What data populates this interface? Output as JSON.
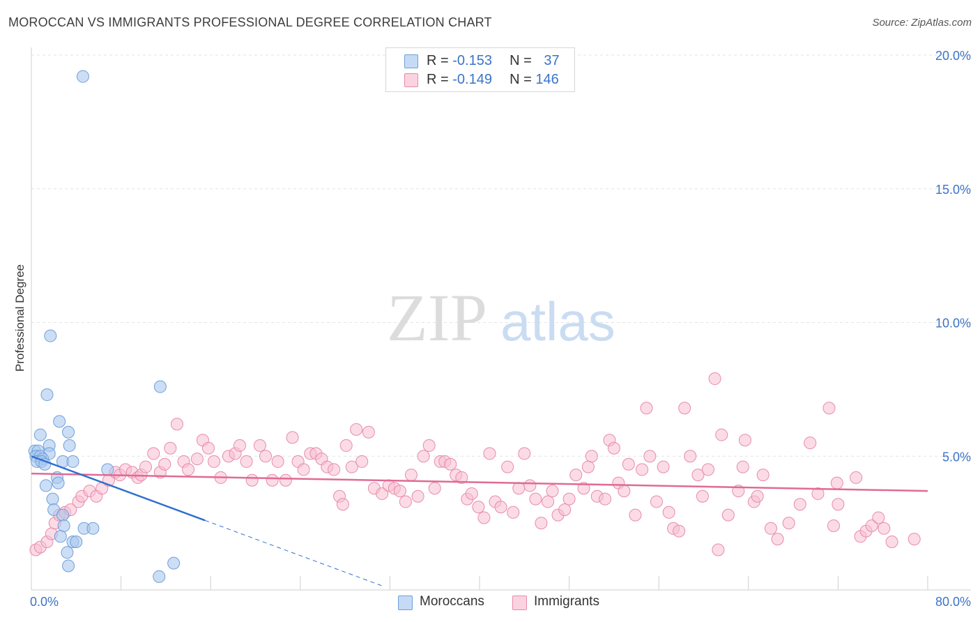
{
  "header": {
    "title": "MOROCCAN VS IMMIGRANTS PROFESSIONAL DEGREE CORRELATION CHART",
    "source": "Source: ZipAtlas.com"
  },
  "watermark": {
    "zip": "ZIP",
    "atlas": "atlas"
  },
  "legend": {
    "rows": [
      {
        "r_label": "R = ",
        "r_value": "-0.153",
        "n_label": "N = ",
        "n_value": "37"
      },
      {
        "r_label": "R = ",
        "r_value": "-0.149",
        "n_label": "N = ",
        "n_value": "146"
      }
    ]
  },
  "bottom_legend": {
    "moroccans": "Moroccans",
    "immigrants": "Immigrants"
  },
  "colors": {
    "moroccans_fill": "#aac8ee",
    "moroccans_stroke": "#6f9fd8",
    "moroccans_line": "#2f6fcf",
    "immigrants_fill": "#f7c0d2",
    "immigrants_stroke": "#e88aaa",
    "immigrants_line": "#e06a96",
    "tick_label": "#3b73c8",
    "grid": "#e3e3e3"
  },
  "chart_data": {
    "type": "scatter",
    "title": "MOROCCAN VS IMMIGRANTS PROFESSIONAL DEGREE CORRELATION CHART",
    "xlabel": "",
    "ylabel": "Professional Degree",
    "xlim": [
      0,
      80
    ],
    "ylim": [
      0,
      20
    ],
    "x_tick_labels": [
      "0.0%",
      "80.0%"
    ],
    "y_tick_labels": [
      "5.0%",
      "10.0%",
      "15.0%",
      "20.0%"
    ],
    "y_ticks": [
      5,
      10,
      15,
      20
    ],
    "grid": true,
    "legend_position": "top-center",
    "series": [
      {
        "name": "Moroccans",
        "r": -0.153,
        "n": 37,
        "trend": {
          "x1": 0,
          "y1": 5.0,
          "x2": 15.5,
          "y2": 2.6,
          "dashed_to_x": 31.5
        },
        "points": [
          [
            4.6,
            19.2
          ],
          [
            1.7,
            9.5
          ],
          [
            11.5,
            7.6
          ],
          [
            1.4,
            7.3
          ],
          [
            2.5,
            6.3
          ],
          [
            0.8,
            5.8
          ],
          [
            3.3,
            5.9
          ],
          [
            1.6,
            5.4
          ],
          [
            3.4,
            5.4
          ],
          [
            0.3,
            5.2
          ],
          [
            0.6,
            5.2
          ],
          [
            1.6,
            5.1
          ],
          [
            0.4,
            5.0
          ],
          [
            0.8,
            5.0
          ],
          [
            1.0,
            4.9
          ],
          [
            0.5,
            4.8
          ],
          [
            0.9,
            4.8
          ],
          [
            1.2,
            4.7
          ],
          [
            2.8,
            4.8
          ],
          [
            3.7,
            4.8
          ],
          [
            6.8,
            4.5
          ],
          [
            2.3,
            4.2
          ],
          [
            1.3,
            3.9
          ],
          [
            2.4,
            4.0
          ],
          [
            1.9,
            3.4
          ],
          [
            2.0,
            3.0
          ],
          [
            2.8,
            2.8
          ],
          [
            2.9,
            2.4
          ],
          [
            4.7,
            2.3
          ],
          [
            5.5,
            2.3
          ],
          [
            2.6,
            2.0
          ],
          [
            3.7,
            1.8
          ],
          [
            4.0,
            1.8
          ],
          [
            3.2,
            1.4
          ],
          [
            3.3,
            0.9
          ],
          [
            12.7,
            1.0
          ],
          [
            11.4,
            0.5
          ]
        ]
      },
      {
        "name": "Immigrants",
        "r": -0.149,
        "n": 146,
        "trend": {
          "x1": 0,
          "y1": 4.35,
          "x2": 80,
          "y2": 3.7
        },
        "points": [
          [
            0.4,
            1.5
          ],
          [
            0.8,
            1.6
          ],
          [
            1.4,
            1.8
          ],
          [
            1.8,
            2.1
          ],
          [
            2.1,
            2.5
          ],
          [
            2.5,
            2.8
          ],
          [
            3.0,
            2.9
          ],
          [
            3.5,
            3.0
          ],
          [
            4.2,
            3.3
          ],
          [
            4.5,
            3.5
          ],
          [
            5.2,
            3.7
          ],
          [
            5.8,
            3.5
          ],
          [
            6.3,
            3.8
          ],
          [
            6.9,
            4.1
          ],
          [
            7.5,
            4.4
          ],
          [
            7.9,
            4.3
          ],
          [
            8.4,
            4.5
          ],
          [
            9.0,
            4.4
          ],
          [
            9.5,
            4.2
          ],
          [
            9.8,
            4.3
          ],
          [
            10.2,
            4.6
          ],
          [
            10.9,
            5.1
          ],
          [
            11.5,
            4.4
          ],
          [
            11.9,
            4.7
          ],
          [
            12.4,
            5.3
          ],
          [
            13.0,
            6.2
          ],
          [
            13.6,
            4.8
          ],
          [
            14.0,
            4.5
          ],
          [
            14.8,
            4.9
          ],
          [
            15.3,
            5.6
          ],
          [
            15.8,
            5.3
          ],
          [
            16.3,
            4.8
          ],
          [
            16.9,
            4.2
          ],
          [
            17.6,
            5.0
          ],
          [
            18.2,
            5.1
          ],
          [
            18.6,
            5.4
          ],
          [
            19.2,
            4.8
          ],
          [
            19.7,
            4.1
          ],
          [
            20.4,
            5.4
          ],
          [
            20.9,
            5.0
          ],
          [
            21.5,
            4.1
          ],
          [
            22.0,
            4.8
          ],
          [
            22.7,
            4.1
          ],
          [
            23.3,
            5.7
          ],
          [
            23.8,
            4.8
          ],
          [
            24.3,
            4.5
          ],
          [
            24.9,
            5.1
          ],
          [
            25.4,
            5.1
          ],
          [
            25.9,
            4.9
          ],
          [
            26.4,
            4.6
          ],
          [
            27.0,
            4.5
          ],
          [
            27.5,
            3.5
          ],
          [
            27.8,
            3.2
          ],
          [
            28.1,
            5.4
          ],
          [
            28.6,
            4.6
          ],
          [
            29.0,
            6.0
          ],
          [
            29.5,
            4.8
          ],
          [
            30.1,
            5.9
          ],
          [
            30.6,
            3.8
          ],
          [
            31.3,
            3.6
          ],
          [
            31.9,
            3.9
          ],
          [
            32.4,
            3.8
          ],
          [
            32.9,
            3.7
          ],
          [
            33.4,
            3.3
          ],
          [
            33.9,
            4.3
          ],
          [
            34.5,
            3.5
          ],
          [
            35.0,
            5.0
          ],
          [
            35.5,
            5.4
          ],
          [
            36.0,
            3.8
          ],
          [
            36.5,
            4.8
          ],
          [
            36.9,
            4.8
          ],
          [
            37.4,
            4.7
          ],
          [
            37.9,
            4.3
          ],
          [
            38.4,
            4.2
          ],
          [
            38.9,
            3.4
          ],
          [
            39.3,
            3.6
          ],
          [
            39.9,
            3.1
          ],
          [
            40.4,
            2.7
          ],
          [
            40.9,
            5.1
          ],
          [
            41.4,
            3.3
          ],
          [
            41.9,
            3.1
          ],
          [
            42.5,
            4.6
          ],
          [
            43.0,
            2.9
          ],
          [
            43.5,
            3.8
          ],
          [
            44.0,
            5.1
          ],
          [
            44.5,
            3.9
          ],
          [
            45.0,
            3.4
          ],
          [
            45.5,
            2.5
          ],
          [
            46.1,
            3.3
          ],
          [
            46.5,
            3.7
          ],
          [
            47.0,
            2.8
          ],
          [
            47.6,
            3.0
          ],
          [
            48.0,
            3.4
          ],
          [
            48.6,
            4.3
          ],
          [
            49.3,
            3.8
          ],
          [
            49.7,
            4.6
          ],
          [
            50.0,
            5.0
          ],
          [
            50.5,
            3.5
          ],
          [
            51.2,
            3.4
          ],
          [
            51.6,
            5.6
          ],
          [
            52.0,
            5.3
          ],
          [
            52.4,
            4.0
          ],
          [
            52.9,
            3.7
          ],
          [
            53.3,
            4.7
          ],
          [
            53.9,
            2.8
          ],
          [
            54.5,
            4.5
          ],
          [
            54.9,
            6.8
          ],
          [
            55.2,
            5.0
          ],
          [
            55.8,
            3.3
          ],
          [
            56.4,
            4.6
          ],
          [
            56.9,
            2.9
          ],
          [
            57.3,
            2.3
          ],
          [
            57.8,
            2.2
          ],
          [
            58.3,
            6.8
          ],
          [
            58.8,
            5.0
          ],
          [
            59.5,
            4.3
          ],
          [
            59.9,
            3.5
          ],
          [
            60.4,
            4.5
          ],
          [
            61.0,
            7.9
          ],
          [
            61.3,
            1.5
          ],
          [
            61.6,
            5.8
          ],
          [
            62.2,
            2.8
          ],
          [
            63.1,
            3.7
          ],
          [
            63.5,
            4.6
          ],
          [
            63.7,
            5.6
          ],
          [
            64.5,
            3.3
          ],
          [
            64.8,
            3.5
          ],
          [
            65.3,
            4.3
          ],
          [
            66.0,
            2.3
          ],
          [
            66.6,
            1.9
          ],
          [
            67.6,
            2.5
          ],
          [
            68.6,
            3.2
          ],
          [
            69.5,
            5.5
          ],
          [
            70.2,
            3.6
          ],
          [
            71.2,
            6.8
          ],
          [
            71.6,
            2.4
          ],
          [
            72.0,
            3.2
          ],
          [
            73.6,
            4.2
          ],
          [
            74.0,
            2.0
          ],
          [
            74.5,
            2.2
          ],
          [
            75.0,
            2.4
          ],
          [
            75.6,
            2.7
          ],
          [
            76.1,
            2.3
          ],
          [
            76.8,
            1.8
          ],
          [
            78.8,
            1.9
          ],
          [
            71.9,
            4.0
          ]
        ]
      }
    ]
  }
}
